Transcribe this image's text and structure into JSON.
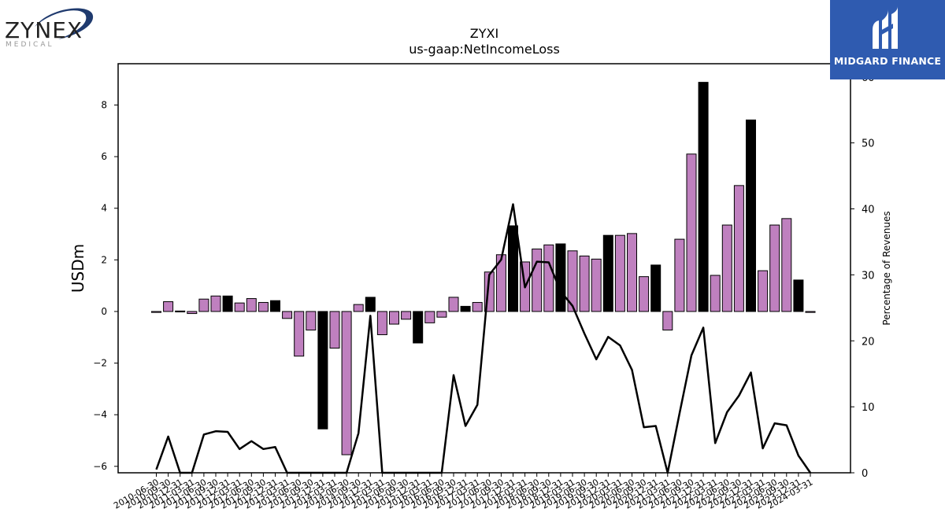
{
  "logos": {
    "left_name": "ZYNEX",
    "left_sub": "MEDICAL",
    "right_name": "MIDGARD FINANCE"
  },
  "chart_data": {
    "type": "bar",
    "title": "ZYXI",
    "subtitle": "us-gaap:NetIncomeLoss",
    "ylabel": "USDm",
    "y2label": "Percentage of Revenues",
    "ylim": [
      -6.25,
      9.6
    ],
    "y2lim": [
      0,
      62
    ],
    "yticks": [
      -6,
      -4,
      -2,
      0,
      2,
      4,
      6,
      8
    ],
    "y2ticks": [
      0,
      10,
      20,
      30,
      40,
      50,
      60
    ],
    "colors": {
      "quarter": "#bf80bf",
      "annual": "#000000",
      "line": "#000000"
    },
    "categories": [
      "2010-06-30",
      "2010-09-30",
      "2010-12-31",
      "2011-03-31",
      "2011-06-30",
      "2011-09-30",
      "2011-12-31",
      "2012-03-31",
      "2012-06-30",
      "2012-09-30",
      "2012-12-31",
      "2013-03-31",
      "2013-06-30",
      "2013-09-30",
      "2013-12-31",
      "2014-03-31",
      "2014-06-30",
      "2014-09-30",
      "2014-12-31",
      "2015-03-31",
      "2015-06-30",
      "2015-09-30",
      "2015-12-31",
      "2016-03-31",
      "2016-06-30",
      "2016-09-30",
      "2016-12-31",
      "2017-03-31",
      "2017-06-30",
      "2017-09-30",
      "2017-12-31",
      "2018-03-31",
      "2018-06-30",
      "2018-09-30",
      "2018-12-31",
      "2019-03-31",
      "2019-06-30",
      "2019-09-30",
      "2019-12-31",
      "2020-03-31",
      "2020-06-30",
      "2020-09-30",
      "2020-12-31",
      "2021-03-31",
      "2021-06-30",
      "2021-09-30",
      "2021-12-31",
      "2022-03-31",
      "2022-06-30",
      "2022-09-30",
      "2022-12-31",
      "2023-03-31",
      "2023-06-30",
      "2023-09-30",
      "2023-12-31",
      "2024-03-31"
    ],
    "series": [
      {
        "values": [
          0.0,
          0.38,
          0.02,
          -0.08,
          0.48,
          0.6,
          0.6,
          0.33,
          0.5,
          0.35,
          0.42,
          -0.27,
          -1.73,
          -0.72,
          -4.55,
          -1.42,
          -5.55,
          0.27,
          0.55,
          -0.9,
          -0.49,
          -0.3,
          -1.22,
          -0.44,
          -0.22,
          0.55,
          0.2,
          0.35,
          1.53,
          2.2,
          3.32,
          1.92,
          2.42,
          2.58,
          2.62,
          2.35,
          2.15,
          2.03,
          2.95,
          2.95,
          3.02,
          1.35,
          1.8,
          -0.72,
          2.8,
          6.1,
          8.88,
          1.4,
          3.35,
          4.88,
          7.42,
          1.58,
          3.35,
          3.6,
          1.22,
          0.0
        ],
        "annual": [
          false,
          false,
          false,
          false,
          false,
          false,
          true,
          false,
          false,
          false,
          true,
          false,
          false,
          false,
          true,
          false,
          false,
          false,
          true,
          false,
          false,
          false,
          true,
          false,
          false,
          false,
          true,
          false,
          false,
          false,
          true,
          false,
          false,
          false,
          true,
          false,
          false,
          false,
          true,
          false,
          false,
          false,
          true,
          false,
          false,
          false,
          true,
          false,
          false,
          false,
          true,
          false,
          false,
          false,
          true,
          false
        ]
      },
      {
        "axis": "right",
        "values": [
          0.5,
          5.5,
          0,
          0,
          5.8,
          6.3,
          6.2,
          3.6,
          4.8,
          3.6,
          3.9,
          0,
          0,
          0,
          0,
          0,
          0,
          6,
          23.8,
          0,
          0,
          0,
          0,
          0,
          0,
          14.8,
          7.1,
          10.3,
          30,
          32.3,
          40.7,
          28.1,
          32,
          31.9,
          27.5,
          25.3,
          21.1,
          17.2,
          20.6,
          19.3,
          15.6,
          6.9,
          7.1,
          0,
          9,
          17.8,
          22,
          4.5,
          9.2,
          11.7,
          15.2,
          3.7,
          7.5,
          7.2,
          2.6,
          0
        ]
      }
    ]
  }
}
